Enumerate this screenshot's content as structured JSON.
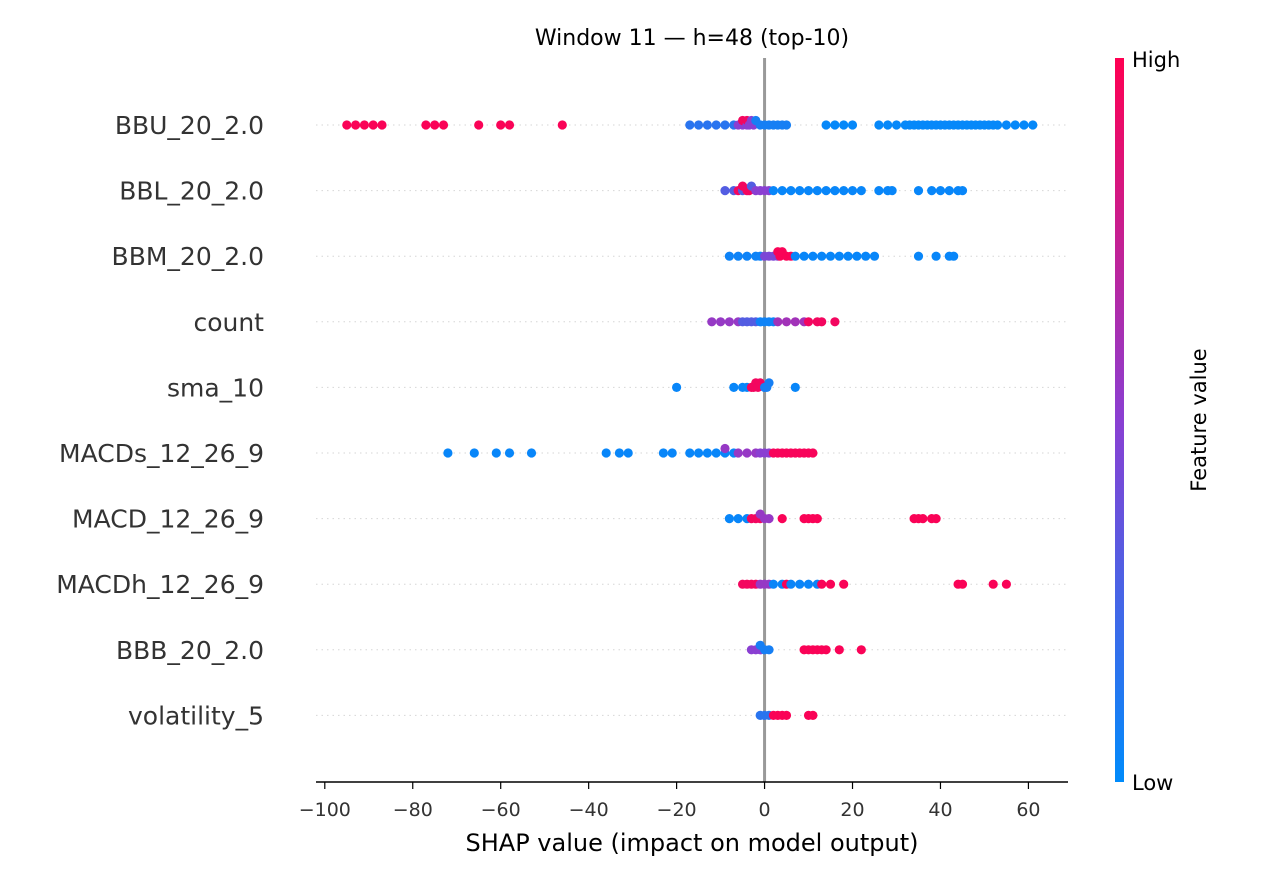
{
  "chart_data": {
    "type": "scatter",
    "subtype": "shap-beeswarm",
    "title": "Window 11 — h=48 (top-10)",
    "xlabel": "SHAP value (impact on model output)",
    "ylabel": "",
    "xlim": [
      -102,
      69
    ],
    "x_ticks": [
      -100,
      -80,
      -60,
      -40,
      -20,
      0,
      20,
      40,
      60
    ],
    "x_tick_labels": [
      "−100",
      "−80",
      "−60",
      "−40",
      "−20",
      "0",
      "20",
      "40",
      "60"
    ],
    "grid": false,
    "zero_line": 0,
    "colorbar": {
      "label": "Feature value",
      "high_label": "High",
      "low_label": "Low",
      "high_color": "#ff0052",
      "low_color": "#008bfb"
    },
    "features": [
      {
        "name": "BBU_20_2.0",
        "groups": [
          {
            "x": [
              -95,
              -93,
              -91,
              -89,
              -87,
              -77,
              -75,
              -73,
              -65,
              -60,
              -58,
              -46
            ],
            "v": 0.98
          },
          {
            "x": [
              -17,
              -15,
              -13,
              -11,
              -9,
              -7
            ],
            "v": 0.15
          },
          {
            "x": [
              -6,
              -5,
              -4,
              -3.5,
              -3,
              -2.5
            ],
            "v": 0.5
          },
          {
            "x": [
              -5,
              -4
            ],
            "v": 0.95
          },
          {
            "x": [
              -2,
              -1,
              0,
              1,
              2,
              3,
              4,
              5
            ],
            "v": 0.08
          },
          {
            "x": [
              14,
              16,
              18,
              20,
              26,
              28,
              30,
              32,
              33,
              34,
              35,
              36,
              37,
              38,
              39,
              40,
              41,
              42,
              43,
              44,
              45,
              46,
              47,
              48,
              49,
              50,
              51,
              52,
              53,
              55,
              57,
              59,
              61
            ],
            "v": 0.02
          }
        ]
      },
      {
        "name": "BBL_20_2.0",
        "groups": [
          {
            "x": [
              -9,
              -7,
              -5,
              -3
            ],
            "v": 0.3
          },
          {
            "x": [
              -6,
              -5,
              -4,
              -3.5
            ],
            "v": 0.95
          },
          {
            "x": [
              -2,
              -1,
              0,
              1
            ],
            "v": 0.5
          },
          {
            "x": [
              2,
              4,
              6,
              8,
              10,
              12,
              14,
              16,
              18,
              20,
              22,
              26,
              28,
              29,
              35,
              38,
              40,
              42,
              44,
              45
            ],
            "v": 0.03
          }
        ]
      },
      {
        "name": "BBM_20_2.0",
        "groups": [
          {
            "x": [
              -8,
              -6,
              -4,
              -2,
              -1
            ],
            "v": 0.05
          },
          {
            "x": [
              0,
              1,
              2,
              3
            ],
            "v": 0.45
          },
          {
            "x": [
              3,
              3.5,
              4,
              5,
              6
            ],
            "v": 0.98
          },
          {
            "x": [
              7,
              9,
              11,
              13,
              15,
              17,
              19,
              21,
              23,
              25,
              35,
              39,
              42,
              43
            ],
            "v": 0.03
          }
        ]
      },
      {
        "name": "count",
        "groups": [
          {
            "x": [
              -12,
              -10,
              -8,
              -6
            ],
            "v": 0.55
          },
          {
            "x": [
              -5,
              -4,
              -3,
              -2
            ],
            "v": 0.3
          },
          {
            "x": [
              -1,
              0,
              1,
              2
            ],
            "v": 0.05
          },
          {
            "x": [
              3,
              5,
              7,
              9
            ],
            "v": 0.6
          },
          {
            "x": [
              10,
              12,
              13,
              16
            ],
            "v": 0.95
          }
        ]
      },
      {
        "name": "sma_10",
        "groups": [
          {
            "x": [
              -20,
              -7,
              -5,
              -4,
              7
            ],
            "v": 0.03
          },
          {
            "x": [
              -3,
              -2.5,
              -2,
              -1.5,
              -1
            ],
            "v": 0.95
          },
          {
            "x": [
              0,
              0.5,
              1
            ],
            "v": 0.08
          }
        ]
      },
      {
        "name": "MACDs_12_26_9",
        "groups": [
          {
            "x": [
              -72,
              -66,
              -61,
              -58,
              -53,
              -36,
              -33,
              -31,
              -23,
              -21,
              -17,
              -15,
              -13,
              -11,
              -9,
              -7
            ],
            "v": 0.03
          },
          {
            "x": [
              -9,
              -6,
              -4,
              -2
            ],
            "v": 0.55
          },
          {
            "x": [
              -1,
              0,
              1
            ],
            "v": 0.5
          },
          {
            "x": [
              2,
              3,
              4,
              5,
              6,
              7,
              8,
              9,
              10,
              11
            ],
            "v": 0.97
          }
        ]
      },
      {
        "name": "MACD_12_26_9",
        "groups": [
          {
            "x": [
              -8,
              -6,
              -4
            ],
            "v": 0.03
          },
          {
            "x": [
              -3,
              -2,
              -1
            ],
            "v": 0.95
          },
          {
            "x": [
              -1,
              0,
              1
            ],
            "v": 0.55
          },
          {
            "x": [
              4,
              9,
              10,
              11,
              12,
              34,
              35,
              36,
              38,
              39
            ],
            "v": 0.98
          }
        ]
      },
      {
        "name": "MACDh_12_26_9",
        "groups": [
          {
            "x": [
              -5,
              -4,
              -3,
              -2
            ],
            "v": 0.95
          },
          {
            "x": [
              -1,
              0,
              1
            ],
            "v": 0.55
          },
          {
            "x": [
              2,
              4,
              6,
              8,
              10,
              12
            ],
            "v": 0.04
          },
          {
            "x": [
              5,
              13,
              15,
              18,
              44,
              45,
              52,
              55
            ],
            "v": 0.98
          }
        ]
      },
      {
        "name": "BBB_20_2.0",
        "groups": [
          {
            "x": [
              -3,
              -2,
              -1
            ],
            "v": 0.5
          },
          {
            "x": [
              -1,
              0,
              1
            ],
            "v": 0.08
          },
          {
            "x": [
              9,
              10,
              11,
              12,
              13,
              14,
              17,
              22
            ],
            "v": 0.98
          }
        ]
      },
      {
        "name": "volatility_5",
        "groups": [
          {
            "x": [
              -1,
              0,
              1
            ],
            "v": 0.15
          },
          {
            "x": [
              2,
              3,
              4,
              5,
              10,
              11
            ],
            "v": 0.98
          }
        ]
      }
    ]
  }
}
